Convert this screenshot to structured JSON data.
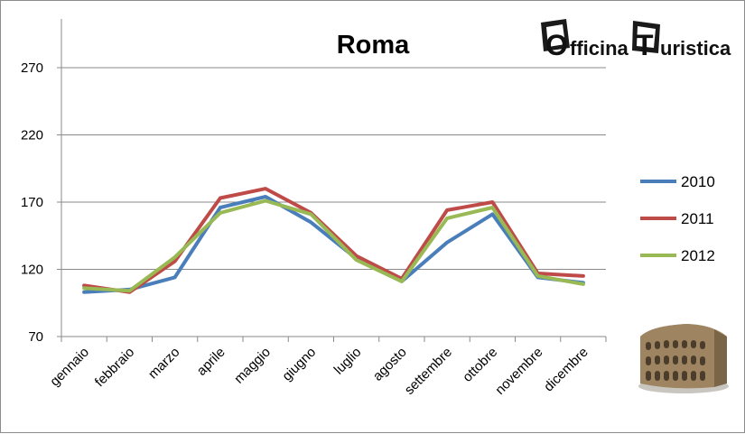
{
  "chart_data": {
    "type": "line",
    "title": "Roma",
    "xlabel": "",
    "ylabel": "",
    "categories": [
      "gennaio",
      "febbraio",
      "marzo",
      "aprile",
      "maggio",
      "giugno",
      "luglio",
      "agosto",
      "settembre",
      "ottobre",
      "novembre",
      "dicembre"
    ],
    "y_ticks": [
      70,
      120,
      170,
      220,
      270
    ],
    "ylim": [
      70,
      295
    ],
    "grid": "horizontal",
    "legend_position": "right",
    "series": [
      {
        "name": "2010",
        "color": "#4a7ebb",
        "values": [
          103,
          105,
          114,
          166,
          174,
          155,
          128,
          111,
          140,
          161,
          114,
          110
        ]
      },
      {
        "name": "2011",
        "color": "#be4b48",
        "values": [
          108,
          103,
          126,
          173,
          180,
          162,
          130,
          113,
          164,
          170,
          117,
          115
        ]
      },
      {
        "name": "2012",
        "color": "#98b954",
        "values": [
          106,
          104,
          129,
          162,
          171,
          161,
          127,
          111,
          158,
          166,
          115,
          109
        ]
      }
    ]
  },
  "logo": {
    "text_part1": "fficina",
    "text_part2": "uristica",
    "letter1": "O",
    "letter2": "T",
    "icon": "colosseum-icon"
  }
}
